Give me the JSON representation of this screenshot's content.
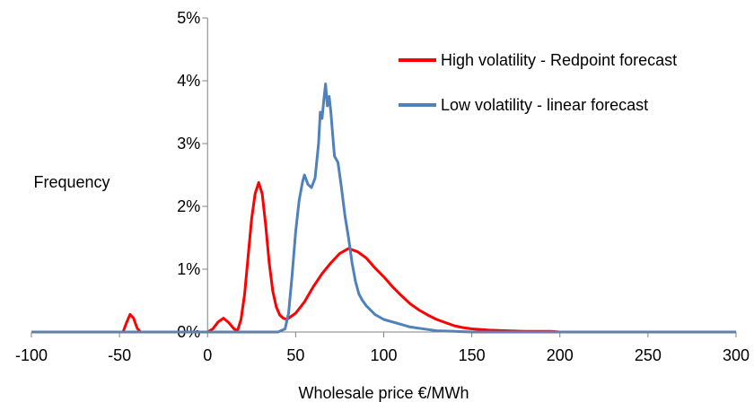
{
  "chart_data": {
    "type": "line",
    "title": "",
    "xlabel": "Wholesale price €/MWh",
    "ylabel": "Frequency",
    "xlim": [
      -100,
      300
    ],
    "ylim": [
      0,
      5
    ],
    "x_ticks": [
      -100,
      -50,
      0,
      50,
      100,
      150,
      200,
      250,
      300
    ],
    "x_tick_labels": [
      "-100",
      "-50",
      "0",
      "50",
      "100",
      "150",
      "200",
      "250",
      "300"
    ],
    "y_ticks": [
      0,
      1,
      2,
      3,
      4,
      5
    ],
    "y_tick_labels": [
      "0%",
      "1%",
      "2%",
      "3%",
      "4%",
      "5%"
    ],
    "grid": false,
    "legend_position": "top-right",
    "series": [
      {
        "name": "High volatility - Redpoint forecast",
        "color": "#ff0000",
        "points": [
          [
            -100,
            0
          ],
          [
            -48,
            0
          ],
          [
            -46,
            0.15
          ],
          [
            -44,
            0.28
          ],
          [
            -42,
            0.22
          ],
          [
            -40,
            0.06
          ],
          [
            -38,
            0
          ],
          [
            0,
            0
          ],
          [
            3,
            0.05
          ],
          [
            6,
            0.16
          ],
          [
            9,
            0.22
          ],
          [
            12,
            0.15
          ],
          [
            15,
            0.05
          ],
          [
            17,
            0.02
          ],
          [
            19,
            0.2
          ],
          [
            21,
            0.6
          ],
          [
            23,
            1.2
          ],
          [
            25,
            1.8
          ],
          [
            27,
            2.2
          ],
          [
            29,
            2.38
          ],
          [
            31,
            2.2
          ],
          [
            33,
            1.7
          ],
          [
            35,
            1.1
          ],
          [
            37,
            0.65
          ],
          [
            39,
            0.4
          ],
          [
            41,
            0.27
          ],
          [
            43,
            0.22
          ],
          [
            45,
            0.2
          ],
          [
            50,
            0.3
          ],
          [
            55,
            0.48
          ],
          [
            60,
            0.72
          ],
          [
            65,
            0.93
          ],
          [
            70,
            1.1
          ],
          [
            75,
            1.25
          ],
          [
            80,
            1.33
          ],
          [
            85,
            1.28
          ],
          [
            90,
            1.18
          ],
          [
            95,
            1.02
          ],
          [
            100,
            0.88
          ],
          [
            105,
            0.72
          ],
          [
            110,
            0.58
          ],
          [
            115,
            0.45
          ],
          [
            120,
            0.35
          ],
          [
            125,
            0.27
          ],
          [
            130,
            0.2
          ],
          [
            135,
            0.15
          ],
          [
            140,
            0.1
          ],
          [
            145,
            0.07
          ],
          [
            150,
            0.05
          ],
          [
            160,
            0.03
          ],
          [
            170,
            0.02
          ],
          [
            180,
            0.01
          ],
          [
            195,
            0.01
          ],
          [
            200,
            0
          ],
          [
            300,
            0
          ]
        ]
      },
      {
        "name": "Low volatility - linear forecast",
        "color": "#4f81bd",
        "points": [
          [
            -100,
            0
          ],
          [
            40,
            0
          ],
          [
            44,
            0.05
          ],
          [
            46,
            0.3
          ],
          [
            48,
            0.9
          ],
          [
            50,
            1.6
          ],
          [
            52,
            2.1
          ],
          [
            54,
            2.4
          ],
          [
            55,
            2.5
          ],
          [
            57,
            2.35
          ],
          [
            59,
            2.3
          ],
          [
            61,
            2.45
          ],
          [
            63,
            3.0
          ],
          [
            64,
            3.5
          ],
          [
            65,
            3.4
          ],
          [
            66,
            3.7
          ],
          [
            67,
            3.95
          ],
          [
            68,
            3.6
          ],
          [
            69,
            3.75
          ],
          [
            70,
            3.5
          ],
          [
            72,
            2.8
          ],
          [
            74,
            2.7
          ],
          [
            76,
            2.3
          ],
          [
            78,
            1.85
          ],
          [
            80,
            1.5
          ],
          [
            82,
            1.1
          ],
          [
            84,
            0.8
          ],
          [
            86,
            0.6
          ],
          [
            88,
            0.5
          ],
          [
            90,
            0.42
          ],
          [
            95,
            0.28
          ],
          [
            100,
            0.2
          ],
          [
            110,
            0.12
          ],
          [
            115,
            0.08
          ],
          [
            120,
            0.06
          ],
          [
            125,
            0.04
          ],
          [
            130,
            0.02
          ],
          [
            140,
            0.01
          ],
          [
            150,
            0
          ],
          [
            300,
            0
          ]
        ]
      }
    ]
  }
}
